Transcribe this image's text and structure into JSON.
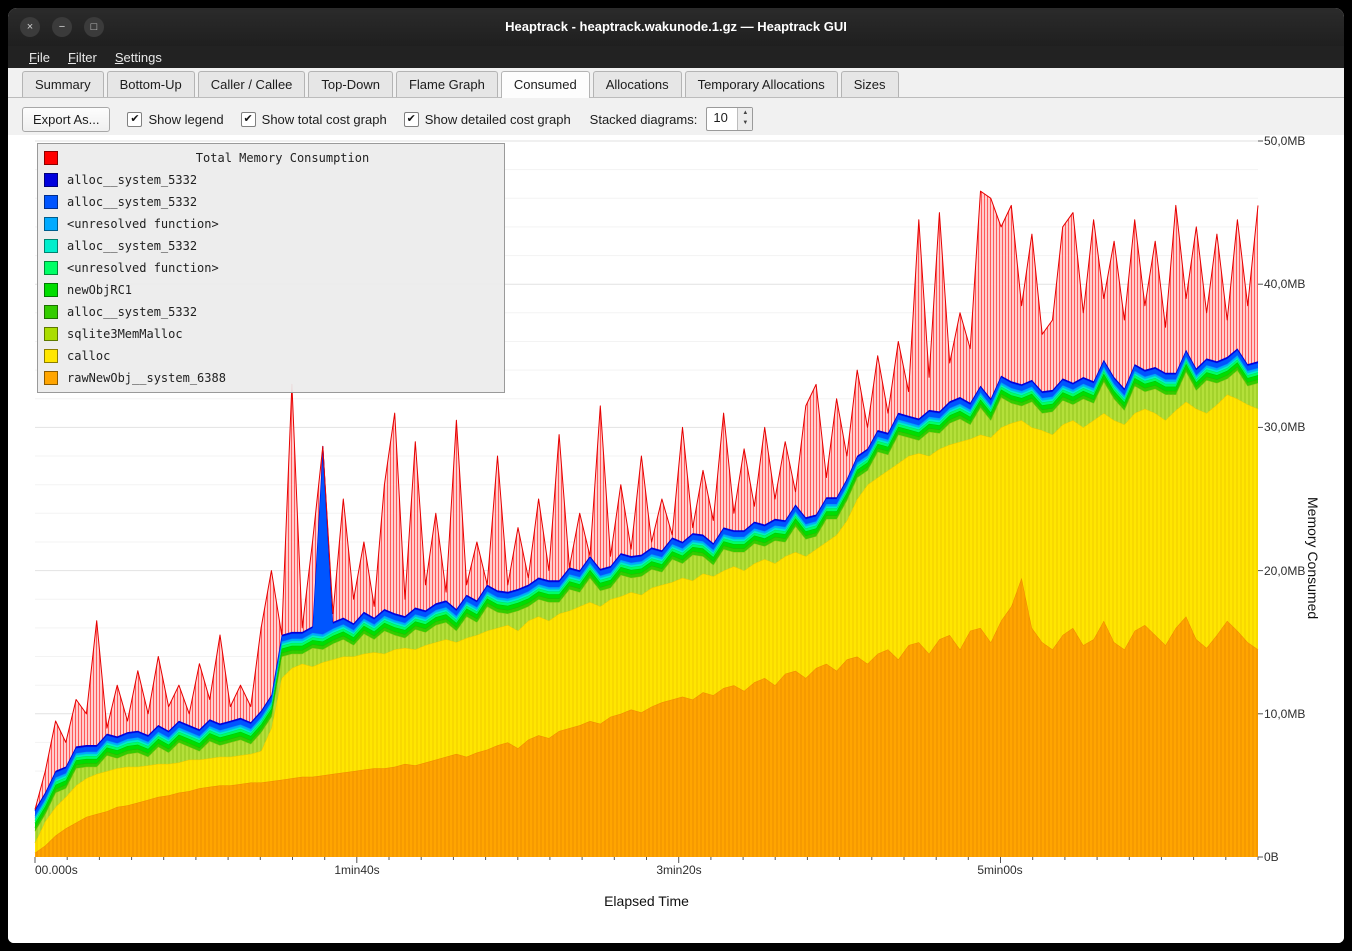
{
  "window": {
    "title": "Heaptrack - heaptrack.wakunode.1.gz — Heaptrack GUI",
    "controls": {
      "close": "×",
      "minimize": "−",
      "maximize": "□"
    }
  },
  "menu": {
    "items": [
      {
        "label": "File"
      },
      {
        "label": "Filter"
      },
      {
        "label": "Settings"
      }
    ]
  },
  "tabs": {
    "items": [
      "Summary",
      "Bottom-Up",
      "Caller / Callee",
      "Top-Down",
      "Flame Graph",
      "Consumed",
      "Allocations",
      "Temporary Allocations",
      "Sizes"
    ],
    "active": "Consumed"
  },
  "toolbar": {
    "export_label": "Export As...",
    "check_glyph": "✔",
    "checkboxes": [
      {
        "label": "Show legend",
        "checked": true
      },
      {
        "label": "Show total cost graph",
        "checked": true
      },
      {
        "label": "Show detailed cost graph",
        "checked": true
      }
    ],
    "stacked_label": "Stacked diagrams:",
    "stacked_value": "10",
    "spin_up": "▲",
    "spin_down": "▼"
  },
  "legend": {
    "title": "Total Memory Consumption",
    "title_color": "#ff0000",
    "items": [
      {
        "label": "alloc__system_5332",
        "color": "#0000dd"
      },
      {
        "label": "alloc__system_5332",
        "color": "#0055ff"
      },
      {
        "label": "<unresolved function>",
        "color": "#00aaff"
      },
      {
        "label": "alloc__system_5332",
        "color": "#00eecc"
      },
      {
        "label": "<unresolved function>",
        "color": "#00ff66"
      },
      {
        "label": "newObjRC1",
        "color": "#00dd00"
      },
      {
        "label": "alloc__system_5332",
        "color": "#33cc00"
      },
      {
        "label": "sqlite3MemMalloc",
        "color": "#aadd00"
      },
      {
        "label": "calloc",
        "color": "#ffe600"
      },
      {
        "label": "rawNewObj__system_6388",
        "color": "#ffa500"
      }
    ]
  },
  "axes": {
    "y_ticks": [
      "50,0MB",
      "40,0MB",
      "30,0MB",
      "20,0MB",
      "10,0MB",
      "0B"
    ],
    "y_label": "Memory Consumed",
    "x_ticks": [
      "00.000s",
      "1min40s",
      "3min20s",
      "5min00s"
    ],
    "x_label": "Elapsed Time"
  },
  "chart_data": {
    "type": "area",
    "stacked": true,
    "title": "Total Memory Consumption",
    "xlabel": "Elapsed Time",
    "ylabel": "Memory Consumed",
    "x_unit": "seconds",
    "x_range": [
      0,
      380
    ],
    "x_tick_positions_s": [
      0,
      100,
      200,
      300
    ],
    "y_unit": "MB",
    "y_range": [
      0,
      50
    ],
    "grid": true,
    "legend_position": "top-left",
    "n_points": 120,
    "x_start": 0,
    "x_step": 3.193,
    "layers": [
      {
        "name": "rawNewObj__system_6388",
        "color": "#ffa500",
        "fill": "#ffa500",
        "hatch": "#f09000",
        "stroke": "#ef8a00",
        "top": [
          0.3,
          0.8,
          1.5,
          2.0,
          2.4,
          2.8,
          3.0,
          3.2,
          3.5,
          3.6,
          3.8,
          4.0,
          4.2,
          4.3,
          4.5,
          4.6,
          4.8,
          4.9,
          5.0,
          5.0,
          5.1,
          5.2,
          5.2,
          5.3,
          5.4,
          5.5,
          5.6,
          5.6,
          5.7,
          5.8,
          5.9,
          6.0,
          6.1,
          6.2,
          6.2,
          6.3,
          6.5,
          6.4,
          6.6,
          6.8,
          7.0,
          7.2,
          7.0,
          7.3,
          7.5,
          7.8,
          8.0,
          7.6,
          8.2,
          8.5,
          8.3,
          8.8,
          9.0,
          9.2,
          9.5,
          9.3,
          9.8,
          10.0,
          10.3,
          10.1,
          10.5,
          10.8,
          11.0,
          11.2,
          11.0,
          11.5,
          11.3,
          11.8,
          12.0,
          11.6,
          12.2,
          12.5,
          12.0,
          12.8,
          13.0,
          12.5,
          13.2,
          13.5,
          13.0,
          13.8,
          14.0,
          13.5,
          14.2,
          14.5,
          13.8,
          14.8,
          15.0,
          14.2,
          15.2,
          15.5,
          14.5,
          15.8,
          16.0,
          15.0,
          16.5,
          17.5,
          19.5,
          16.0,
          15.0,
          14.5,
          15.5,
          16.0,
          14.8,
          15.2,
          16.5,
          15.0,
          14.5,
          15.8,
          16.2,
          15.5,
          14.8,
          16.0,
          16.8,
          15.2,
          14.6,
          15.5,
          16.5,
          15.8,
          15.0,
          14.5
        ]
      },
      {
        "name": "calloc",
        "color": "#ffe600",
        "fill": "#ffe600",
        "hatch": "#f3cf00",
        "stroke": "#edc900",
        "top": [
          1.0,
          2.5,
          3.5,
          4.2,
          5.0,
          5.5,
          5.8,
          6.0,
          6.2,
          6.3,
          6.3,
          6.4,
          6.5,
          6.5,
          6.6,
          6.8,
          6.8,
          6.9,
          7.0,
          7.0,
          7.1,
          7.2,
          7.4,
          9.0,
          12.5,
          13.2,
          13.5,
          13.3,
          13.6,
          13.8,
          14.0,
          14.0,
          14.2,
          14.3,
          14.2,
          14.5,
          14.6,
          14.5,
          14.8,
          15.0,
          15.2,
          15.0,
          15.3,
          15.5,
          15.8,
          16.0,
          16.2,
          15.8,
          16.5,
          16.8,
          16.5,
          17.0,
          17.2,
          17.5,
          17.8,
          17.5,
          18.0,
          18.2,
          18.5,
          18.3,
          18.8,
          19.0,
          19.2,
          19.5,
          19.3,
          19.8,
          19.6,
          20.0,
          20.3,
          20.0,
          20.5,
          20.8,
          20.5,
          21.0,
          21.3,
          21.0,
          21.5,
          22.0,
          22.5,
          23.5,
          25.0,
          26.0,
          26.5,
          27.0,
          27.5,
          28.0,
          28.2,
          28.0,
          28.5,
          28.8,
          29.0,
          29.2,
          29.5,
          29.3,
          30.0,
          30.3,
          30.5,
          30.0,
          29.8,
          29.5,
          30.2,
          30.5,
          30.0,
          30.5,
          31.0,
          30.5,
          30.2,
          31.0,
          31.3,
          31.0,
          30.5,
          31.2,
          31.8,
          31.3,
          31.0,
          31.6,
          32.3,
          32.0,
          31.6,
          31.3
        ]
      },
      {
        "name": "sqlite3MemMalloc",
        "color": "#aadd00",
        "fill": "#b4e03a",
        "hatch": "#95c81e",
        "stroke": "#8fc41c",
        "deltas": [
          0.8,
          0.5,
          1.0,
          0.6,
          1.2,
          0.8,
          0.5,
          1.1,
          0.7,
          0.9,
          1.0,
          0.6,
          1.2,
          0.8,
          1.4,
          0.9,
          0.6,
          1.2,
          0.8,
          1.0,
          1.1,
          0.7,
          1.3,
          0.8,
          1.5,
          1.0,
          0.7,
          1.3,
          0.9,
          1.1,
          1.2,
          0.8,
          1.4,
          0.9,
          1.6,
          1.0,
          0.7,
          1.4,
          0.9,
          1.2,
          1.2,
          0.8,
          1.5,
          0.9,
          1.7,
          1.1,
          0.8,
          1.4,
          1.0,
          1.2,
          1.3,
          0.8,
          1.5,
          1.0,
          1.7,
          1.1,
          0.8,
          1.5,
          1.0,
          1.3,
          1.3,
          0.9,
          1.6,
          1.0,
          1.8,
          1.2,
          0.8,
          1.5,
          1.0,
          1.3,
          1.4,
          0.9,
          1.6,
          1.0,
          1.8,
          1.2,
          0.9,
          1.6,
          1.1,
          1.4,
          1.5,
          1.0,
          1.8,
          1.1,
          2.0,
          1.3,
          0.9,
          1.7,
          1.1,
          1.5,
          1.6,
          1.0,
          1.9,
          1.2,
          2.1,
          1.4,
          1.0,
          1.8,
          1.2,
          1.6,
          1.7,
          1.1,
          2.0,
          1.2,
          2.2,
          1.5,
          1.0,
          1.9,
          1.2,
          1.7,
          1.8,
          1.1,
          2.1,
          1.3,
          2.3,
          1.5,
          1.1,
          2.0,
          1.3,
          1.8
        ]
      },
      {
        "name": "alloc__system_5332",
        "color": "#33cc00",
        "fill": "#33cc00",
        "stroke": "#2ab300",
        "offset": 0.25
      },
      {
        "name": "newObjRC1",
        "color": "#00dd00",
        "fill": "#00dd00",
        "stroke": "#00c000",
        "offset": 0.3
      },
      {
        "name": "<unresolved function>",
        "color": "#00ff66",
        "fill": "#00ff66",
        "stroke": "#00e05c",
        "offset": 0.2
      },
      {
        "name": "alloc__system_5332",
        "color": "#00eecc",
        "fill": "#00eecc",
        "stroke": "#00d4b6",
        "offset": 0.15
      },
      {
        "name": "<unresolved function>",
        "color": "#00aaff",
        "fill": "#00aaff",
        "stroke": "#0099ee",
        "offset": 0.15
      },
      {
        "name": "alloc__system_5332",
        "color": "#0055ff",
        "fill": "#0055ff",
        "stroke": "#0044ff",
        "lw": 1.2,
        "offset": 0.35,
        "spikes": [
          [
            28,
            13
          ]
        ]
      },
      {
        "name": "alloc__system_5332",
        "color": "#0000dd",
        "fill": "#0000dd",
        "stroke": "#0000cc",
        "offset": 0.12
      },
      {
        "name": "Total Memory Consumption",
        "color": "#ff0000",
        "fill": "#ffd4d4",
        "hatch": "#ff5a5a",
        "pw": 3,
        "stroke": "#e60000",
        "top": [
          2.5,
          6.0,
          9.5,
          8.0,
          11.0,
          10.0,
          16.5,
          9.0,
          12.0,
          9.5,
          13.0,
          10.0,
          14.0,
          10.5,
          12.0,
          10.0,
          13.5,
          11.0,
          15.5,
          10.5,
          12.0,
          10.5,
          16.0,
          20.0,
          15.0,
          33.0,
          16.0,
          22.0,
          28.5,
          17.0,
          25.0,
          18.0,
          22.0,
          17.5,
          26.0,
          31.0,
          18.0,
          29.0,
          19.0,
          24.0,
          18.5,
          30.5,
          19.0,
          22.0,
          18.5,
          28.0,
          19.0,
          23.0,
          19.5,
          25.0,
          20.0,
          29.5,
          20.0,
          24.0,
          20.5,
          31.5,
          21.0,
          26.0,
          21.5,
          28.0,
          22.0,
          25.0,
          22.5,
          30.0,
          23.0,
          27.0,
          23.5,
          31.0,
          24.0,
          28.5,
          24.5,
          30.0,
          25.0,
          29.0,
          25.5,
          31.5,
          33.0,
          26.5,
          32.0,
          28.0,
          34.0,
          30.0,
          35.0,
          31.0,
          36.0,
          32.5,
          44.5,
          33.5,
          45.0,
          34.5,
          38.0,
          35.5,
          46.5,
          46.0,
          44.0,
          45.5,
          38.5,
          43.5,
          36.5,
          37.5,
          44.0,
          45.0,
          38.0,
          44.5,
          39.0,
          43.0,
          37.5,
          44.5,
          38.5,
          43.0,
          37.0,
          45.5,
          39.0,
          44.0,
          38.0,
          43.5,
          37.5,
          44.5,
          38.5,
          45.5
        ]
      }
    ]
  }
}
